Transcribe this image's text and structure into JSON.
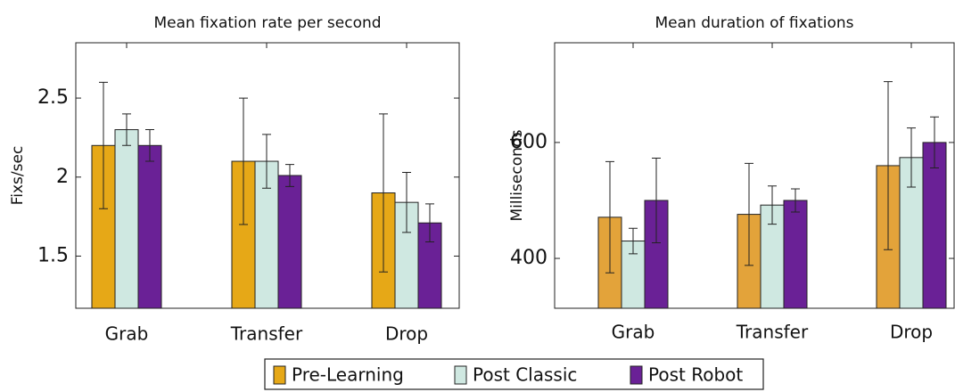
{
  "chart_data": [
    {
      "type": "bar",
      "title": "Mean fixation rate per second",
      "y_label": "Fixs/sec",
      "categories": [
        "Grab",
        "Transfer",
        "Drop"
      ],
      "series": [
        {
          "name": "Pre-Learning",
          "color": "#e6a817",
          "values": [
            2.2,
            2.1,
            1.9
          ],
          "errors": [
            0.4,
            0.4,
            0.5
          ]
        },
        {
          "name": "Post Classic",
          "color": "#cfe8e1",
          "values": [
            2.3,
            2.1,
            1.84
          ],
          "errors": [
            0.1,
            0.17,
            0.19
          ]
        },
        {
          "name": "Post Robot",
          "color": "#6a2196",
          "values": [
            2.2,
            2.01,
            1.71
          ],
          "errors": [
            0.1,
            0.07,
            0.12
          ]
        }
      ],
      "ylim": [
        1.17,
        2.85
      ],
      "yticks": [
        1.5,
        2,
        2.5
      ]
    },
    {
      "type": "bar",
      "title": "Mean duration of fixations",
      "y_label": "Milliseconds",
      "categories": [
        "Grab",
        "Transfer",
        "Drop"
      ],
      "series": [
        {
          "name": "Pre-Learning",
          "color": "#e3a33a",
          "values": [
            471,
            476,
            560
          ],
          "errors": [
            96,
            88,
            145
          ]
        },
        {
          "name": "Post Classic",
          "color": "#cfe8e1",
          "values": [
            430,
            492,
            574
          ],
          "errors": [
            22,
            33,
            51
          ]
        },
        {
          "name": "Post Robot",
          "color": "#6a2196",
          "values": [
            500,
            500,
            600
          ],
          "errors": [
            73,
            20,
            44
          ]
        }
      ],
      "ylim": [
        314,
        772
      ],
      "yticks": [
        400,
        600
      ]
    }
  ]
}
